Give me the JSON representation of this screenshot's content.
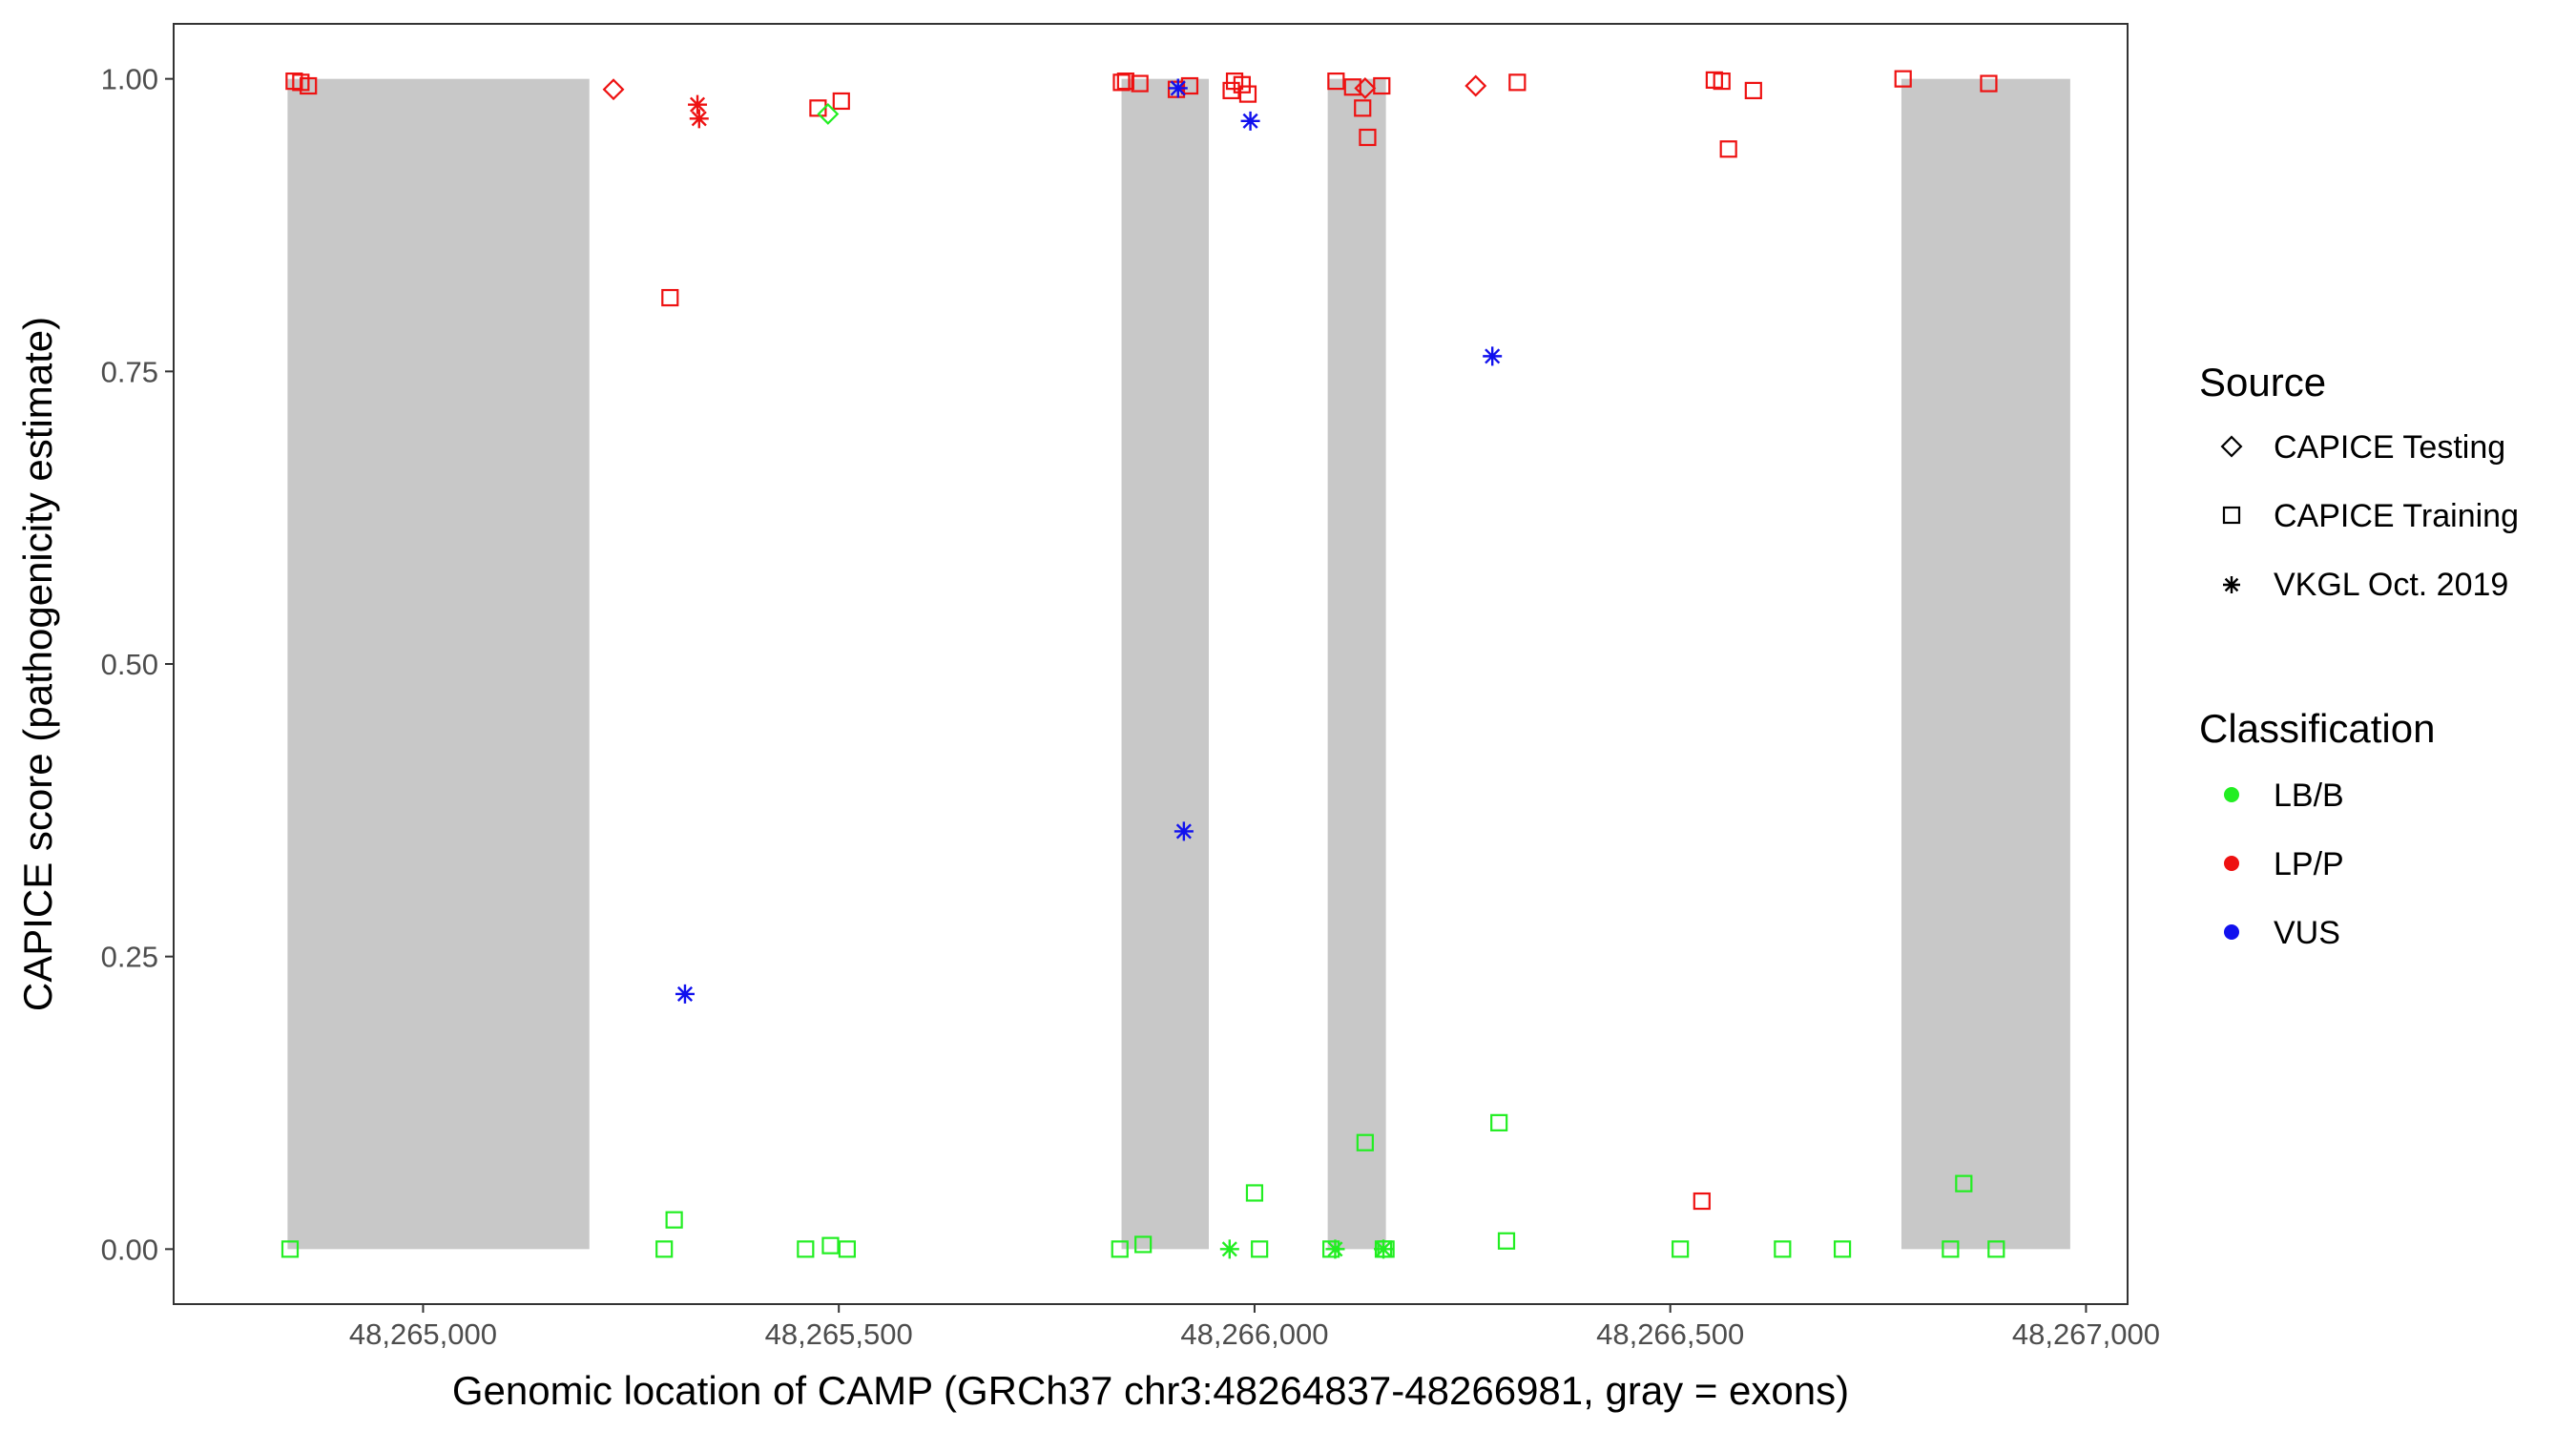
{
  "chart_data": {
    "type": "scatter",
    "title": "",
    "xlabel": "Genomic location of CAMP (GRCh37 chr3:48264837-48266981, gray = exons)",
    "ylabel": "CAPICE score (pathogenicity estimate)",
    "xlim": [
      48264700,
      48267050
    ],
    "ylim": [
      -0.047,
      1.047
    ],
    "x_ticks": [
      48265000,
      48265500,
      48266000,
      48266500,
      48267000
    ],
    "x_tick_labels": [
      "48,265,000",
      "48,265,500",
      "48,266,000",
      "48,266,500",
      "48,267,000"
    ],
    "y_ticks": [
      0,
      0.25,
      0.5,
      0.75,
      1
    ],
    "y_tick_labels": [
      "0.00",
      "0.25",
      "0.50",
      "0.75",
      "1.00"
    ],
    "grid": false,
    "exons": [
      {
        "start": 48264837,
        "end": 48265200
      },
      {
        "start": 48265840,
        "end": 48265945
      },
      {
        "start": 48266088,
        "end": 48266158
      },
      {
        "start": 48266778,
        "end": 48266981
      }
    ],
    "colors": {
      "LB/B": "#22ee22",
      "LP/P": "#ee1111",
      "VUS": "#1111ee",
      "exon": "#c8c8c8"
    },
    "legend": {
      "position": "right",
      "source_title": "Source",
      "source_items": [
        {
          "label": "CAPICE Testing",
          "shape": "diamond"
        },
        {
          "label": "CAPICE Training",
          "shape": "square"
        },
        {
          "label": "VKGL Oct. 2019",
          "shape": "asterisk"
        }
      ],
      "class_title": "Classification",
      "class_items": [
        {
          "label": "LB/B",
          "color": "#22ee22"
        },
        {
          "label": "LP/P",
          "color": "#ee1111"
        },
        {
          "label": "VUS",
          "color": "#1111ee"
        }
      ]
    },
    "series": [
      {
        "name": "CAPICE Training / LP/P",
        "shape": "square",
        "cls": "LP/P",
        "points": [
          [
            48264845,
            0.998
          ],
          [
            48264853,
            0.997
          ],
          [
            48264862,
            0.994
          ],
          [
            48265297,
            0.813
          ],
          [
            48265475,
            0.975
          ],
          [
            48265503,
            0.981
          ],
          [
            48265840,
            0.997
          ],
          [
            48265845,
            0.998
          ],
          [
            48265862,
            0.996
          ],
          [
            48265906,
            0.991
          ],
          [
            48265922,
            0.994
          ],
          [
            48265972,
            0.99
          ],
          [
            48265976,
            0.998
          ],
          [
            48265985,
            0.995
          ],
          [
            48265992,
            0.987
          ],
          [
            48266098,
            0.998
          ],
          [
            48266118,
            0.993
          ],
          [
            48266130,
            0.975
          ],
          [
            48266136,
            0.95
          ],
          [
            48266153,
            0.994
          ],
          [
            48266316,
            0.997
          ],
          [
            48266553,
            0.999
          ],
          [
            48266562,
            0.998
          ],
          [
            48266570,
            0.94
          ],
          [
            48266600,
            0.99
          ],
          [
            48266780,
            1.0
          ],
          [
            48266883,
            0.996
          ],
          [
            48266538,
            0.041
          ]
        ]
      },
      {
        "name": "CAPICE Training / LB/B",
        "shape": "square",
        "cls": "LB/B",
        "points": [
          [
            48264840,
            0.0
          ],
          [
            48265290,
            0.0
          ],
          [
            48265302,
            0.025
          ],
          [
            48265460,
            0.0
          ],
          [
            48265490,
            0.003
          ],
          [
            48265510,
            0.0
          ],
          [
            48265838,
            0.0
          ],
          [
            48265866,
            0.004
          ],
          [
            48266000,
            0.048
          ],
          [
            48266006,
            0.0
          ],
          [
            48266092,
            0.0
          ],
          [
            48266133,
            0.091
          ],
          [
            48266155,
            0.0
          ],
          [
            48266158,
            0.0
          ],
          [
            48266294,
            0.108
          ],
          [
            48266303,
            0.007
          ],
          [
            48266512,
            0.0
          ],
          [
            48266635,
            0.0
          ],
          [
            48266707,
            0.0
          ],
          [
            48266837,
            0.0
          ],
          [
            48266853,
            0.056
          ],
          [
            48266892,
            0.0
          ]
        ]
      },
      {
        "name": "CAPICE Testing / LP/P",
        "shape": "diamond",
        "cls": "LP/P",
        "points": [
          [
            48265229,
            0.991
          ],
          [
            48266133,
            0.992
          ],
          [
            48266266,
            0.994
          ]
        ]
      },
      {
        "name": "CAPICE Testing / LB/B",
        "shape": "diamond",
        "cls": "LB/B",
        "points": [
          [
            48265487,
            0.97
          ]
        ]
      },
      {
        "name": "VKGL Oct. 2019 / LP/P",
        "shape": "asterisk",
        "cls": "LP/P",
        "points": [
          [
            48265330,
            0.978
          ],
          [
            48265332,
            0.966
          ]
        ]
      },
      {
        "name": "VKGL Oct. 2019 / VUS",
        "shape": "asterisk",
        "cls": "VUS",
        "points": [
          [
            48265315,
            0.218
          ],
          [
            48265915,
            0.357
          ],
          [
            48265908,
            0.992
          ],
          [
            48265995,
            0.964
          ],
          [
            48266286,
            0.763
          ]
        ]
      },
      {
        "name": "VKGL Oct. 2019 / LB/B",
        "shape": "asterisk",
        "cls": "LB/B",
        "points": [
          [
            48265970,
            0.0
          ],
          [
            48266097,
            0.0
          ],
          [
            48266155,
            0.0
          ]
        ]
      }
    ]
  }
}
